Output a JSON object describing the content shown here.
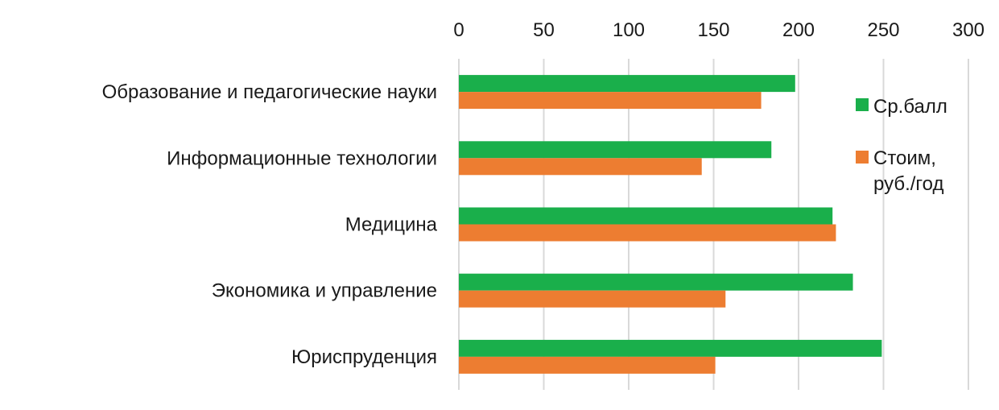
{
  "chart_data": {
    "type": "bar",
    "orientation": "horizontal",
    "categories": [
      "Образование и педагогические науки",
      "Информационные технологии",
      "Медицина",
      "Экономика и управление",
      "Юриспруденция"
    ],
    "series": [
      {
        "name": "Ср.балл",
        "color": "#1aaf4b",
        "values": [
          198,
          184,
          220,
          232,
          249
        ]
      },
      {
        "name": "Стоим, руб./год",
        "legend_lines": [
          "Стоим,",
          "руб./год"
        ],
        "color": "#ed7d31",
        "values": [
          178,
          143,
          222,
          157,
          151
        ]
      }
    ],
    "xlim": [
      0,
      300
    ],
    "x_ticks": [
      "0",
      "50",
      "100",
      "150",
      "200",
      "250",
      "300"
    ],
    "x_tick_values": [
      0,
      50,
      100,
      150,
      200,
      250,
      300
    ],
    "x_axis_position": "top",
    "grid": "vertical",
    "legend_position": "right"
  }
}
